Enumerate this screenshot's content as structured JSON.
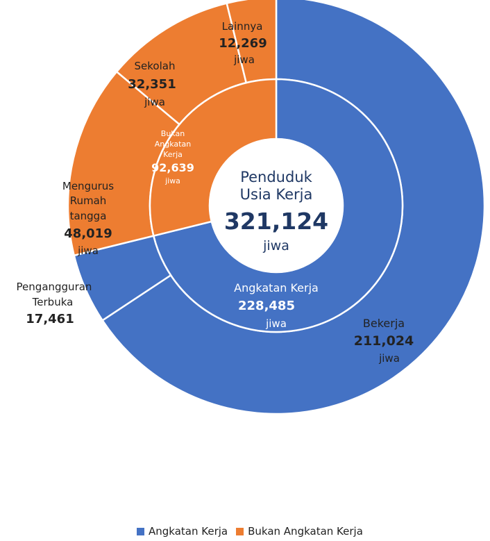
{
  "chart_data": {
    "type": "pie",
    "subtype": "double-donut",
    "center": {
      "line1": "Penduduk",
      "line2": "Usia Kerja",
      "value": "321,124",
      "unit": "jiwa"
    },
    "inner_ring": [
      {
        "name": "Angkatan Kerja",
        "value": 228485,
        "display": "228,485",
        "unit": "jiwa",
        "color": "#4472c4"
      },
      {
        "name": "Bukan Angkatan Kerja",
        "value": 92639,
        "display": "92,639",
        "unit": "jiwa",
        "color": "#ed7d31"
      }
    ],
    "outer_ring": [
      {
        "name": "Bekerja",
        "value": 211024,
        "display": "211,024",
        "unit": "jiwa",
        "color": "#4472c4"
      },
      {
        "name": "Pengangguran Terbuka",
        "value": 17461,
        "display": "17,461",
        "unit": "",
        "color": "#4472c4"
      },
      {
        "name": "Mengurus Rumah tangga",
        "value": 48019,
        "display": "48,019",
        "unit": "jiwa",
        "color": "#ed7d31"
      },
      {
        "name": "Sekolah",
        "value": 32351,
        "display": "32,351",
        "unit": "jiwa",
        "color": "#ed7d31"
      },
      {
        "name": "Lainnya",
        "value": 12269,
        "display": "12,269",
        "unit": "jiwa",
        "color": "#ed7d31"
      }
    ],
    "legend": [
      {
        "label": "Angkatan Kerja",
        "color": "#4472c4"
      },
      {
        "label": "Bukan Angkatan Kerja",
        "color": "#ed7d31"
      }
    ],
    "legend_position": "bottom"
  }
}
